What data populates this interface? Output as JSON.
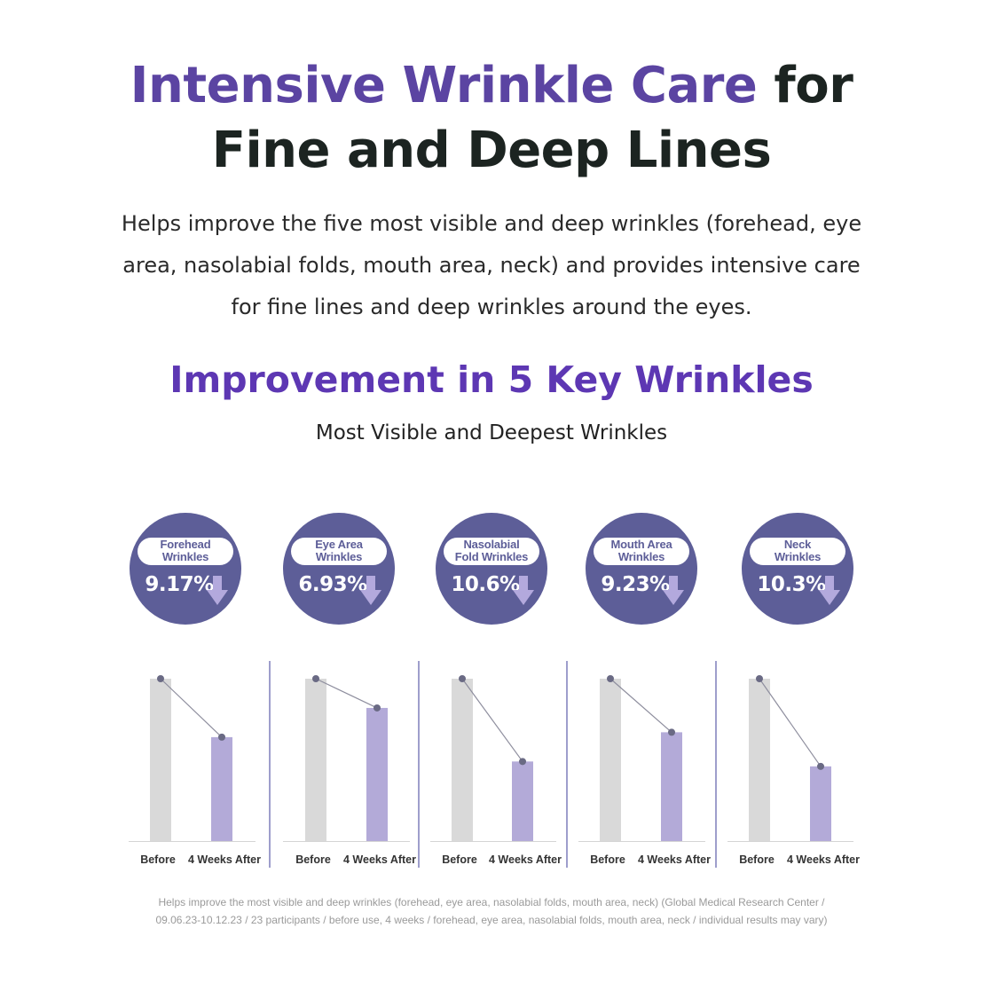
{
  "header": {
    "title_accent": "Intensive Wrinkle Care",
    "title_rest": "for",
    "title_line2": "Fine and Deep Lines",
    "description": [
      "Helps improve the five most visible and deep wrinkles (forehead, eye",
      "area, nasolabial folds, mouth area, neck) and provides intensive care",
      "for fine lines and deep wrinkles around the eyes."
    ]
  },
  "section": {
    "title": "Improvement in 5 Key Wrinkles",
    "subtitle": "Most Visible and Deepest Wrinkles"
  },
  "badges": [
    {
      "line1": "Forehead",
      "line2": "Wrinkles",
      "value": "9.17%",
      "icon": "arrow-down-icon"
    },
    {
      "line1": "Eye Area",
      "line2": "Wrinkles",
      "value": "6.93%",
      "icon": "arrow-down-icon"
    },
    {
      "line1": "Nasolabial",
      "line2": "Fold Wrinkles",
      "value": "10.6%",
      "icon": "arrow-down-icon"
    },
    {
      "line1": "Mouth Area",
      "line2": "Wrinkles",
      "value": "9.23%",
      "icon": "arrow-down-icon"
    },
    {
      "line1": "Neck",
      "line2": "Wrinkles",
      "value": "10.3%",
      "icon": "arrow-down-icon"
    }
  ],
  "chart_data": {
    "type": "bar",
    "categories": [
      "Before",
      "4 Weeks After"
    ],
    "groups": [
      {
        "name": "Forehead Wrinkles",
        "values": [
          100,
          64
        ]
      },
      {
        "name": "Eye Area Wrinkles",
        "values": [
          100,
          82
        ]
      },
      {
        "name": "Nasolabial Fold Wrinkles",
        "values": [
          100,
          49
        ]
      },
      {
        "name": "Mouth Area Wrinkles",
        "values": [
          100,
          67
        ]
      },
      {
        "name": "Neck Wrinkles",
        "values": [
          100,
          46
        ]
      }
    ],
    "ylim": [
      0,
      100
    ],
    "grid": false,
    "colors": {
      "before": "#d9d9d9",
      "after": "#b3aad8",
      "line": "#8e8e9e",
      "dot": "#6a6a84",
      "divider": "#6a6ab0",
      "baseline": "#d4d4d4"
    }
  },
  "colors": {
    "accent": "#5b44a2",
    "badge": "#5d5e98",
    "arrow": "#b3a9dd"
  },
  "footnote": [
    "Helps improve the most visible and deep wrinkles (forehead, eye area, nasolabial folds, mouth area, neck) (Global Medical Research Center /",
    "09.06.23-10.12.23 / 23 participants / before use, 4 weeks / forehead, eye area, nasolabial folds, mouth area, neck / individual results may vary)"
  ]
}
